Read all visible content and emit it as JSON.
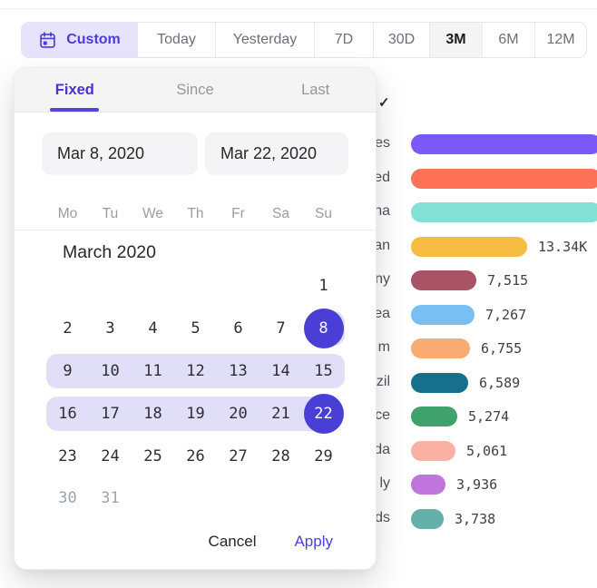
{
  "date_range_bar": {
    "segments": [
      {
        "label": "Custom",
        "icon": "calendar-icon",
        "state": "active"
      },
      {
        "label": "Today",
        "state": "normal"
      },
      {
        "label": "Yesterday",
        "state": "normal"
      },
      {
        "label": "7D",
        "state": "normal"
      },
      {
        "label": "30D",
        "state": "normal"
      },
      {
        "label": "3M",
        "state": "selected"
      },
      {
        "label": "6M",
        "state": "normal"
      },
      {
        "label": "12M",
        "state": "normal"
      }
    ]
  },
  "datepicker": {
    "tabs": [
      {
        "label": "Fixed",
        "active": true
      },
      {
        "label": "Since",
        "active": false
      },
      {
        "label": "Last",
        "active": false
      }
    ],
    "start_date": "Mar 8, 2020",
    "end_date": "Mar 22, 2020",
    "weekdays": [
      "Mo",
      "Tu",
      "We",
      "Th",
      "Fr",
      "Sa",
      "Su"
    ],
    "month_label": "March 2020",
    "weeks": [
      [
        "",
        "",
        "",
        "",
        "",
        "",
        "1"
      ],
      [
        "2",
        "3",
        "4",
        "5",
        "6",
        "7",
        "8"
      ],
      [
        "9",
        "10",
        "11",
        "12",
        "13",
        "14",
        "15"
      ],
      [
        "16",
        "17",
        "18",
        "19",
        "20",
        "21",
        "22"
      ],
      [
        "23",
        "24",
        "25",
        "26",
        "27",
        "28",
        "29"
      ],
      [
        "30",
        "31",
        "",
        "",
        "",
        "",
        ""
      ]
    ],
    "selected_start_day": "8",
    "selected_end_day": "22",
    "muted_days": [
      "30",
      "31"
    ],
    "cancel_label": "Cancel",
    "apply_label": "Apply"
  },
  "background_page": {
    "checkmark_icon": "✓",
    "chart_data": {
      "type": "bar",
      "orientation": "horizontal",
      "note": "row labels are truncated by the datepicker overlay; top three bars run past the right screen edge so their values are not visible",
      "rows": [
        {
          "label_visible": "es",
          "value": null,
          "value_text": "",
          "color": "#7b58f8",
          "clipped": true
        },
        {
          "label_visible": "ed",
          "value": null,
          "value_text": "",
          "color": "#ff7257",
          "clipped": true
        },
        {
          "label_visible": "na",
          "value": null,
          "value_text": "",
          "color": "#83e0d3",
          "clipped": true
        },
        {
          "label_visible": "an",
          "value": 13340,
          "value_text": "13.34K",
          "color": "#f7bd42",
          "clipped": false
        },
        {
          "label_visible": "ny",
          "value": 7515,
          "value_text": "7,515",
          "color": "#a85466",
          "clipped": false
        },
        {
          "label_visible": "ea",
          "value": 7267,
          "value_text": "7,267",
          "color": "#79bff2",
          "clipped": false
        },
        {
          "label_visible": "m",
          "value": 6755,
          "value_text": "6,755",
          "color": "#faab72",
          "clipped": false
        },
        {
          "label_visible": "zil",
          "value": 6589,
          "value_text": "6,589",
          "color": "#16708b",
          "clipped": false
        },
        {
          "label_visible": "ce",
          "value": 5274,
          "value_text": "5,274",
          "color": "#3fa26d",
          "clipped": false
        },
        {
          "label_visible": "da",
          "value": 5061,
          "value_text": "5,061",
          "color": "#fab1a3",
          "clipped": false
        },
        {
          "label_visible": "ly",
          "value": 3936,
          "value_text": "3,936",
          "color": "#bf75dc",
          "clipped": false
        },
        {
          "label_visible": "ds",
          "value": 3738,
          "value_text": "3,738",
          "color": "#63b1a8",
          "clipped": false
        }
      ]
    }
  },
  "colors": {
    "accent_text": "#4c3bdb",
    "selection_circle": "#4a3fd5",
    "range_highlight": "#e1def8",
    "custom_segment_bg": "#e7e3fc",
    "selected_segment_bg": "#f4f4f5",
    "tab_underline": "#5243d9",
    "apply_link": "#4c3cf0"
  }
}
